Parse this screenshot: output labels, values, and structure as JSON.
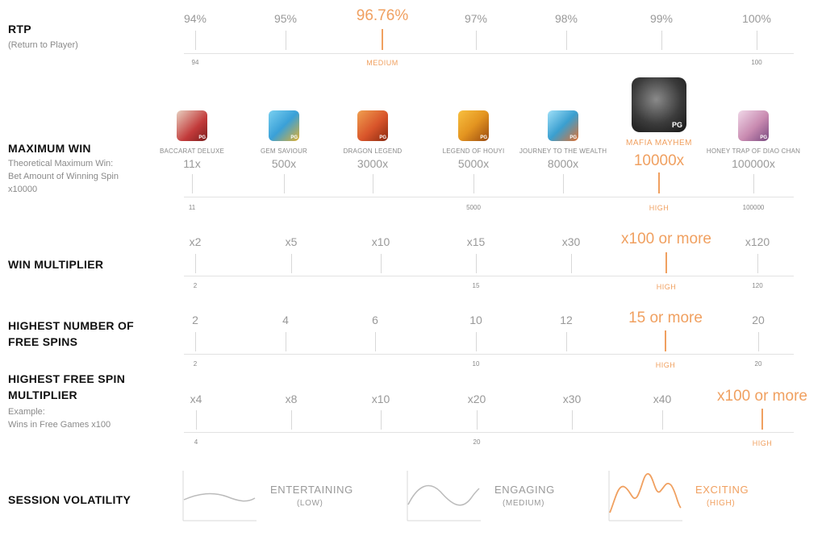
{
  "colors": {
    "accent": "#f0a060",
    "muted": "#999999",
    "line": "#d8d8d8"
  },
  "rtp": {
    "title": "RTP",
    "subtitle": "(Return to Player)",
    "ticks": [
      "94%",
      "95%",
      "96.76%",
      "97%",
      "98%",
      "99%",
      "100%"
    ],
    "highlight_label": "96.76%",
    "scale_min": "94",
    "scale_mid": "MEDIUM",
    "scale_max": "100"
  },
  "max_win": {
    "title": "MAXIMUM WIN",
    "subtitle_lines": [
      "Theoretical Maximum Win:",
      "Bet Amount of Winning Spin",
      "x10000"
    ],
    "games": [
      {
        "name": "BACCARAT DELUXE",
        "value": "11x",
        "icon": "baccarat-deluxe-icon",
        "color": "#c23a3a"
      },
      {
        "name": "GEM SAVIOUR",
        "value": "500x",
        "icon": "gem-saviour-icon",
        "color": "#3aa0d8"
      },
      {
        "name": "DRAGON LEGEND",
        "value": "3000x",
        "icon": "dragon-legend-icon",
        "color": "#d8542a"
      },
      {
        "name": "LEGEND OF HOUYI",
        "value": "5000x",
        "icon": "legend-of-houyi-icon",
        "color": "#e39420"
      },
      {
        "name": "JOURNEY TO THE WEALTH",
        "value": "8000x",
        "icon": "journey-to-the-wealth-icon",
        "color": "#3a9fd0"
      },
      {
        "name": "MAFIA MAYHEM",
        "value": "10000x",
        "icon": "mafia-mayhem-icon",
        "color": "#3b3b3b"
      },
      {
        "name": "HONEY TRAP OF DIAO CHAN",
        "value": "100000x",
        "icon": "honey-trap-of-diao-chan-icon",
        "color": "#c88ab0"
      }
    ],
    "icon_tag": "PG",
    "scale_min": "11",
    "scale_mid": "5000",
    "scale_hl": "HIGH",
    "scale_max": "100000"
  },
  "win_multiplier": {
    "title": "WIN MULTIPLIER",
    "ticks": [
      "x2",
      "x5",
      "x10",
      "x15",
      "x30",
      "x100 or more",
      "x120"
    ],
    "scale_min": "2",
    "scale_mid": "15",
    "scale_hl": "HIGH",
    "scale_max": "120"
  },
  "free_spins": {
    "title_lines": [
      "HIGHEST NUMBER OF",
      "FREE SPINS"
    ],
    "ticks": [
      "2",
      "4",
      "6",
      "10",
      "12",
      "15 or more",
      "20"
    ],
    "scale_min": "2",
    "scale_mid": "10",
    "scale_hl": "HIGH",
    "scale_max": "20"
  },
  "free_spin_multiplier": {
    "title_lines": [
      "HIGHEST FREE SPIN",
      "MULTIPLIER"
    ],
    "subtitle_lines": [
      "Example:",
      "Wins in Free Games x100"
    ],
    "ticks": [
      "x4",
      "x8",
      "x10",
      "x20",
      "x30",
      "x40",
      "x100 or more"
    ],
    "scale_min": "4",
    "scale_mid": "20",
    "scale_hl": "HIGH"
  },
  "volatility": {
    "title": "SESSION VOLATILITY",
    "levels": [
      {
        "word": "ENTERTAINING",
        "level": "(LOW)"
      },
      {
        "word": "ENGAGING",
        "level": "(MEDIUM)"
      },
      {
        "word": "EXCITING",
        "level": "(HIGH)"
      }
    ]
  }
}
